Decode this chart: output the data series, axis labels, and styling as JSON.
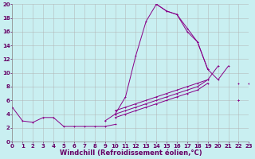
{
  "xlabel": "Windchill (Refroidissement éolien,°C)",
  "xlim": [
    0,
    23
  ],
  "ylim": [
    0,
    20
  ],
  "xticks": [
    0,
    1,
    2,
    3,
    4,
    5,
    6,
    7,
    8,
    9,
    10,
    11,
    12,
    13,
    14,
    15,
    16,
    17,
    18,
    19,
    20,
    21,
    22,
    23
  ],
  "yticks": [
    0,
    2,
    4,
    6,
    8,
    10,
    12,
    14,
    16,
    18,
    20
  ],
  "background_color": "#c9eff1",
  "grid_color": "#b0b0b0",
  "line_color": "#880088",
  "font_color": "#660066",
  "tick_fontsize": 5.0,
  "label_fontsize": 6.0,
  "line1_x": [
    0,
    1,
    2,
    3,
    4,
    5,
    6,
    7,
    8,
    9,
    10,
    11,
    12,
    13,
    14,
    15,
    16,
    17,
    18,
    19,
    20,
    21,
    22,
    23
  ],
  "line1_y": [
    5.0,
    3.0,
    2.8,
    3.5,
    3.5,
    2.2,
    2.2,
    2.2,
    2.2,
    2.2,
    2.5,
    null,
    null,
    null,
    null,
    null,
    null,
    null,
    null,
    null,
    null,
    null,
    null,
    null
  ],
  "line2_x": [
    0,
    1,
    2,
    3,
    4,
    5,
    6,
    7,
    8,
    9,
    10,
    11,
    12,
    13,
    14,
    15,
    16,
    17,
    18,
    19,
    20,
    21,
    22,
    23
  ],
  "line2_y": [
    null,
    null,
    null,
    null,
    null,
    null,
    null,
    null,
    null,
    3.0,
    4.0,
    6.5,
    12.5,
    17.5,
    20.0,
    19.0,
    18.5,
    16.0,
    14.5,
    10.5,
    null,
    null,
    null,
    null
  ],
  "line3_x": [
    0,
    1,
    2,
    3,
    4,
    5,
    6,
    7,
    8,
    9,
    10,
    11,
    12,
    13,
    14,
    15,
    16,
    17,
    18,
    19,
    20,
    21,
    22,
    23
  ],
  "line3_y": [
    null,
    null,
    null,
    null,
    null,
    null,
    null,
    null,
    null,
    null,
    null,
    null,
    null,
    null,
    20.0,
    19.0,
    18.5,
    16.5,
    14.5,
    10.5,
    9.0,
    11.0,
    null,
    8.5
  ],
  "line4_x": [
    0,
    1,
    2,
    3,
    4,
    5,
    6,
    7,
    8,
    9,
    10,
    11,
    12,
    13,
    14,
    15,
    16,
    17,
    18,
    19,
    20,
    21,
    22,
    23
  ],
  "line4_y": [
    5.0,
    null,
    null,
    null,
    null,
    null,
    null,
    null,
    null,
    null,
    4.5,
    5.0,
    5.5,
    6.0,
    6.5,
    7.0,
    7.5,
    8.0,
    8.5,
    9.0,
    null,
    null,
    6.0,
    null
  ],
  "line5_x": [
    0,
    1,
    2,
    3,
    4,
    5,
    6,
    7,
    8,
    9,
    10,
    11,
    12,
    13,
    14,
    15,
    16,
    17,
    18,
    19,
    20,
    21,
    22,
    23
  ],
  "line5_y": [
    5.0,
    null,
    null,
    null,
    null,
    null,
    null,
    null,
    null,
    null,
    4.0,
    4.5,
    5.0,
    5.5,
    6.0,
    6.5,
    7.0,
    7.5,
    8.0,
    9.0,
    11.0,
    null,
    8.5,
    null
  ],
  "line6_x": [
    0,
    1,
    2,
    3,
    4,
    5,
    6,
    7,
    8,
    9,
    10,
    11,
    12,
    13,
    14,
    15,
    16,
    17,
    18,
    19,
    20,
    21,
    22,
    23
  ],
  "line6_y": [
    5.0,
    null,
    null,
    null,
    null,
    null,
    null,
    null,
    null,
    null,
    3.5,
    4.0,
    4.5,
    5.0,
    5.5,
    6.0,
    6.5,
    7.0,
    7.5,
    8.5,
    null,
    null,
    6.0,
    null
  ]
}
